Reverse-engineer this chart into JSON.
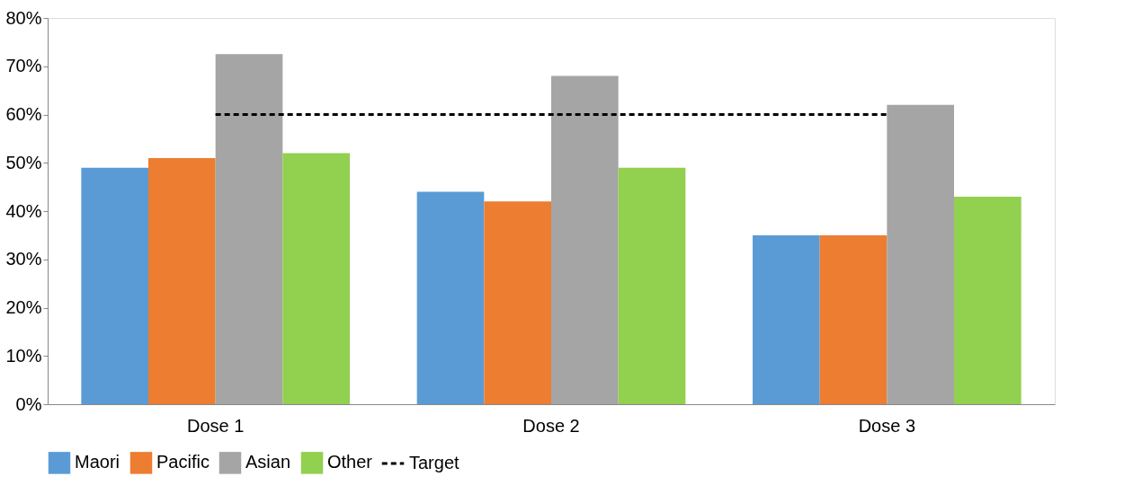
{
  "chart_data": {
    "type": "bar",
    "categories": [
      "Dose 1",
      "Dose 2",
      "Dose 3"
    ],
    "series": [
      {
        "name": "Maori",
        "color": "#5b9bd5",
        "values": [
          49,
          44,
          35
        ]
      },
      {
        "name": "Pacific",
        "color": "#ed7d31",
        "values": [
          51,
          42,
          35
        ]
      },
      {
        "name": "Asian",
        "color": "#a5a5a5",
        "values": [
          72.5,
          68,
          62
        ]
      },
      {
        "name": "Other",
        "color": "#92d050",
        "values": [
          52,
          49,
          43
        ]
      },
      {
        "name": "Target",
        "type": "line",
        "color": "#000000",
        "line_style": "dashed",
        "values": [
          60,
          60,
          60
        ]
      }
    ],
    "ylim": [
      0,
      80
    ],
    "yticks": [
      {
        "value": 0,
        "label": "0%"
      },
      {
        "value": 10,
        "label": "10%"
      },
      {
        "value": 20,
        "label": "20%"
      },
      {
        "value": 30,
        "label": "30%"
      },
      {
        "value": 40,
        "label": "40%"
      },
      {
        "value": 50,
        "label": "50%"
      },
      {
        "value": 60,
        "label": "60%"
      },
      {
        "value": 70,
        "label": "70%"
      },
      {
        "value": 80,
        "label": "80%"
      }
    ],
    "grid": false,
    "legend": "bottom"
  }
}
